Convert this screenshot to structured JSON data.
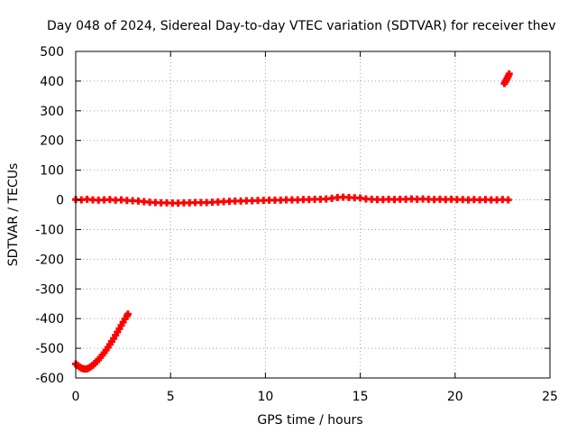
{
  "chart_data": {
    "type": "scatter",
    "title": "Day 048 of 2024, Sidereal Day-to-day VTEC variation (SDTVAR) for receiver thev",
    "xlabel": "GPS time / hours",
    "ylabel": "SDTVAR / TECUs",
    "xlim": [
      0,
      25
    ],
    "ylim": [
      -600,
      500
    ],
    "xticks": [
      0,
      5,
      10,
      15,
      20,
      25
    ],
    "yticks": [
      -600,
      -500,
      -400,
      -300,
      -200,
      -100,
      0,
      100,
      200,
      300,
      400,
      500
    ],
    "xtick_labels": [
      "0",
      "5",
      "10",
      "15",
      "20",
      "25"
    ],
    "ytick_labels": [
      "-600",
      "-500",
      "-400",
      "-300",
      "-200",
      "-100",
      "0",
      "100",
      "200",
      "300",
      "400",
      "500"
    ],
    "grid": true,
    "marker": "plus",
    "color": "#ff0000",
    "series": [
      {
        "points": [
          [
            0.0,
            -553
          ],
          [
            0.1,
            -558
          ],
          [
            0.2,
            -563
          ],
          [
            0.3,
            -567
          ],
          [
            0.4,
            -569
          ],
          [
            0.5,
            -570
          ],
          [
            0.6,
            -569
          ],
          [
            0.7,
            -566
          ],
          [
            0.8,
            -562
          ],
          [
            0.9,
            -557
          ],
          [
            1.0,
            -551
          ],
          [
            1.1,
            -545
          ],
          [
            1.2,
            -538
          ],
          [
            1.3,
            -531
          ],
          [
            1.4,
            -523
          ],
          [
            1.5,
            -515
          ],
          [
            1.6,
            -506
          ],
          [
            1.7,
            -497
          ],
          [
            1.8,
            -487
          ],
          [
            1.9,
            -477
          ],
          [
            2.0,
            -467
          ],
          [
            2.1,
            -456
          ],
          [
            2.2,
            -445
          ],
          [
            2.3,
            -434
          ],
          [
            2.4,
            -423
          ],
          [
            2.5,
            -412
          ],
          [
            2.6,
            -401
          ],
          [
            2.7,
            -391
          ],
          [
            2.75,
            -385
          ],
          [
            0.0,
            1
          ],
          [
            0.3,
            0
          ],
          [
            0.6,
            2
          ],
          [
            0.9,
            0
          ],
          [
            1.2,
            -1
          ],
          [
            1.5,
            0
          ],
          [
            1.8,
            1
          ],
          [
            2.1,
            -1
          ],
          [
            2.4,
            0
          ],
          [
            2.7,
            -2
          ],
          [
            3.0,
            -3
          ],
          [
            3.3,
            -4
          ],
          [
            3.6,
            -6
          ],
          [
            3.9,
            -8
          ],
          [
            4.2,
            -9
          ],
          [
            4.5,
            -10
          ],
          [
            4.8,
            -10
          ],
          [
            5.1,
            -11
          ],
          [
            5.4,
            -11
          ],
          [
            5.7,
            -10
          ],
          [
            6.0,
            -10
          ],
          [
            6.3,
            -9
          ],
          [
            6.6,
            -9
          ],
          [
            6.9,
            -9
          ],
          [
            7.2,
            -8
          ],
          [
            7.5,
            -7
          ],
          [
            7.8,
            -6
          ],
          [
            8.1,
            -5
          ],
          [
            8.4,
            -4
          ],
          [
            8.7,
            -4
          ],
          [
            9.0,
            -3
          ],
          [
            9.3,
            -3
          ],
          [
            9.6,
            -2
          ],
          [
            9.9,
            -2
          ],
          [
            10.2,
            -1
          ],
          [
            10.5,
            -1
          ],
          [
            10.8,
            -1
          ],
          [
            11.1,
            0
          ],
          [
            11.4,
            0
          ],
          [
            11.7,
            0
          ],
          [
            12.0,
            1
          ],
          [
            12.3,
            1
          ],
          [
            12.6,
            2
          ],
          [
            12.9,
            2
          ],
          [
            13.2,
            3
          ],
          [
            13.5,
            5
          ],
          [
            13.8,
            8
          ],
          [
            14.1,
            9
          ],
          [
            14.4,
            8
          ],
          [
            14.7,
            7
          ],
          [
            15.0,
            6
          ],
          [
            15.3,
            3
          ],
          [
            15.6,
            2
          ],
          [
            15.9,
            1
          ],
          [
            16.2,
            1
          ],
          [
            16.5,
            2
          ],
          [
            16.8,
            1
          ],
          [
            17.1,
            2
          ],
          [
            17.4,
            2
          ],
          [
            17.7,
            3
          ],
          [
            18.0,
            2
          ],
          [
            18.3,
            3
          ],
          [
            18.6,
            2
          ],
          [
            18.9,
            1
          ],
          [
            19.2,
            2
          ],
          [
            19.5,
            1
          ],
          [
            19.8,
            2
          ],
          [
            20.1,
            1
          ],
          [
            20.4,
            1
          ],
          [
            20.7,
            0
          ],
          [
            21.0,
            1
          ],
          [
            21.3,
            0
          ],
          [
            21.6,
            1
          ],
          [
            21.9,
            0
          ],
          [
            22.2,
            0
          ],
          [
            22.5,
            1
          ],
          [
            22.8,
            0
          ],
          [
            22.6,
            392
          ],
          [
            22.65,
            398
          ],
          [
            22.7,
            404
          ],
          [
            22.75,
            410
          ],
          [
            22.8,
            417
          ],
          [
            22.85,
            424
          ]
        ]
      }
    ]
  }
}
